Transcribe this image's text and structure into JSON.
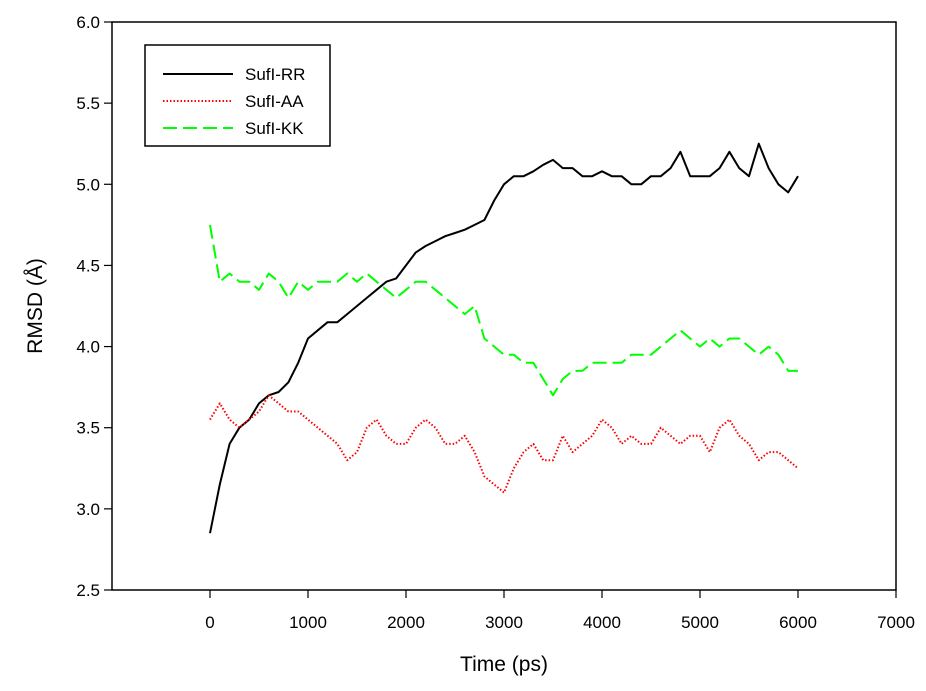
{
  "chart_data": {
    "type": "line",
    "title": "",
    "xlabel": "Time (ps)",
    "ylabel": "RMSD (Å)",
    "xlim": [
      -1000,
      7000
    ],
    "ylim": [
      2.5,
      6.0
    ],
    "xticks": [
      0,
      1000,
      2000,
      3000,
      4000,
      5000,
      6000,
      7000
    ],
    "yticks": [
      2.5,
      3.0,
      3.5,
      4.0,
      4.5,
      5.0,
      5.5,
      6.0
    ],
    "grid": false,
    "legend_position": "top-left",
    "series": [
      {
        "name": "SufI-RR",
        "color": "#000000",
        "dash": "solid",
        "x": [
          0,
          100,
          200,
          300,
          400,
          500,
          600,
          700,
          800,
          900,
          1000,
          1100,
          1200,
          1300,
          1400,
          1500,
          1600,
          1700,
          1800,
          1900,
          2000,
          2100,
          2200,
          2300,
          2400,
          2500,
          2600,
          2700,
          2800,
          2900,
          3000,
          3100,
          3200,
          3300,
          3400,
          3500,
          3600,
          3700,
          3800,
          3900,
          4000,
          4100,
          4200,
          4300,
          4400,
          4500,
          4600,
          4700,
          4800,
          4900,
          5000,
          5100,
          5200,
          5300,
          5400,
          5500,
          5600,
          5700,
          5800,
          5900,
          6000
        ],
        "y": [
          2.85,
          3.15,
          3.4,
          3.5,
          3.55,
          3.65,
          3.7,
          3.72,
          3.78,
          3.9,
          4.05,
          4.1,
          4.15,
          4.15,
          4.2,
          4.25,
          4.3,
          4.35,
          4.4,
          4.42,
          4.5,
          4.58,
          4.62,
          4.65,
          4.68,
          4.7,
          4.72,
          4.75,
          4.78,
          4.9,
          5.0,
          5.05,
          5.05,
          5.08,
          5.12,
          5.15,
          5.1,
          5.1,
          5.05,
          5.05,
          5.08,
          5.05,
          5.05,
          5.0,
          5.0,
          5.05,
          5.05,
          5.1,
          5.2,
          5.05,
          5.05,
          5.05,
          5.1,
          5.2,
          5.1,
          5.05,
          5.25,
          5.1,
          5.0,
          4.95,
          5.05
        ]
      },
      {
        "name": "SufI-AA",
        "color": "#ff0000",
        "dash": "dotted",
        "x": [
          0,
          100,
          200,
          300,
          400,
          500,
          600,
          700,
          800,
          900,
          1000,
          1100,
          1200,
          1300,
          1400,
          1500,
          1600,
          1700,
          1800,
          1900,
          2000,
          2100,
          2200,
          2300,
          2400,
          2500,
          2600,
          2700,
          2800,
          2900,
          3000,
          3100,
          3200,
          3300,
          3400,
          3500,
          3600,
          3700,
          3800,
          3900,
          4000,
          4100,
          4200,
          4300,
          4400,
          4500,
          4600,
          4700,
          4800,
          4900,
          5000,
          5100,
          5200,
          5300,
          5400,
          5500,
          5600,
          5700,
          5800,
          5900,
          6000
        ],
        "y": [
          3.55,
          3.65,
          3.55,
          3.5,
          3.55,
          3.6,
          3.7,
          3.65,
          3.6,
          3.6,
          3.55,
          3.5,
          3.45,
          3.4,
          3.3,
          3.35,
          3.5,
          3.55,
          3.45,
          3.4,
          3.4,
          3.5,
          3.55,
          3.5,
          3.4,
          3.4,
          3.45,
          3.35,
          3.2,
          3.15,
          3.1,
          3.25,
          3.35,
          3.4,
          3.3,
          3.3,
          3.45,
          3.35,
          3.4,
          3.45,
          3.55,
          3.5,
          3.4,
          3.45,
          3.4,
          3.4,
          3.5,
          3.45,
          3.4,
          3.45,
          3.45,
          3.35,
          3.5,
          3.55,
          3.45,
          3.4,
          3.3,
          3.35,
          3.35,
          3.3,
          3.25
        ]
      },
      {
        "name": "SufI-KK",
        "color": "#00ff00",
        "dash": "dashed",
        "x": [
          0,
          100,
          200,
          300,
          400,
          500,
          600,
          700,
          800,
          900,
          1000,
          1100,
          1200,
          1300,
          1400,
          1500,
          1600,
          1700,
          1800,
          1900,
          2000,
          2100,
          2200,
          2300,
          2400,
          2500,
          2600,
          2700,
          2800,
          2900,
          3000,
          3100,
          3200,
          3300,
          3400,
          3500,
          3600,
          3700,
          3800,
          3900,
          4000,
          4100,
          4200,
          4300,
          4400,
          4500,
          4600,
          4700,
          4800,
          4900,
          5000,
          5100,
          5200,
          5300,
          5400,
          5500,
          5600,
          5700,
          5800,
          5900,
          6000
        ],
        "y": [
          4.75,
          4.4,
          4.45,
          4.4,
          4.4,
          4.35,
          4.45,
          4.4,
          4.3,
          4.4,
          4.35,
          4.4,
          4.4,
          4.4,
          4.45,
          4.4,
          4.45,
          4.4,
          4.35,
          4.3,
          4.35,
          4.4,
          4.4,
          4.35,
          4.3,
          4.25,
          4.2,
          4.25,
          4.05,
          4.0,
          3.95,
          3.95,
          3.9,
          3.9,
          3.8,
          3.7,
          3.8,
          3.85,
          3.85,
          3.9,
          3.9,
          3.9,
          3.9,
          3.95,
          3.95,
          3.95,
          4.0,
          4.05,
          4.1,
          4.05,
          4.0,
          4.05,
          4.0,
          4.05,
          4.05,
          4.0,
          3.95,
          4.0,
          3.95,
          3.85,
          3.85
        ]
      }
    ]
  }
}
